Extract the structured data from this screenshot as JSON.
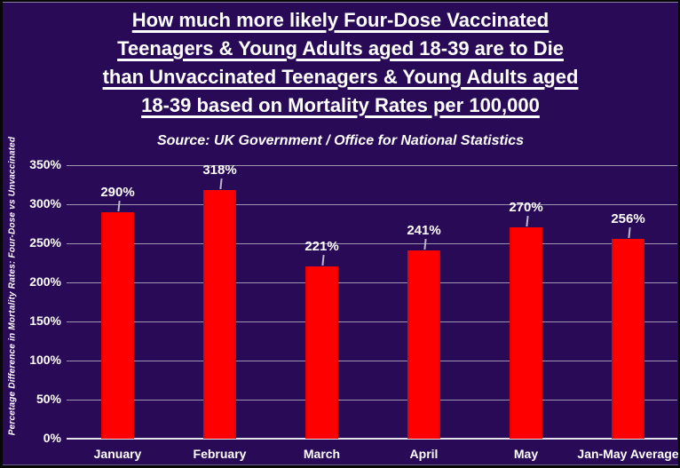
{
  "chart_data": {
    "type": "bar",
    "title": "How much more likely Four-Dose Vaccinated Teenagers & Young Adults aged 18-39 are to Die than Unvaccinated Teenagers & Young Adults aged 18-39 based on Mortality Rates per 100,000",
    "title_lines": [
      "How much more likely Four-Dose Vaccinated",
      "Teenagers & Young Adults aged 18-39 are to Die",
      "than Unvaccinated Teenagers & Young Adults aged",
      "18-39 based on Mortality Rates per 100,000"
    ],
    "subtitle": "Source: UK Government / Office for National Statistics",
    "ylabel": "Percetage Difference in Mortality Rates: Four-Dose vs Unvaccinated",
    "xlabel": "",
    "categories": [
      "January",
      "February",
      "March",
      "April",
      "May",
      "Jan-May Average"
    ],
    "values": [
      290,
      318,
      221,
      241,
      270,
      256
    ],
    "data_labels": [
      "290%",
      "318%",
      "221%",
      "241%",
      "270%",
      "256%"
    ],
    "ylim": [
      0,
      350
    ],
    "ytick_step": 50,
    "ytick_labels": [
      "0%",
      "50%",
      "100%",
      "150%",
      "200%",
      "250%",
      "300%",
      "350%"
    ],
    "grid": true,
    "legend": "none",
    "colors": {
      "background": "#290A56",
      "bar": "#FE0000",
      "gridline": "#9C95B2",
      "axis_line": "#E4E2EC",
      "text": "#FFFFFF"
    }
  }
}
